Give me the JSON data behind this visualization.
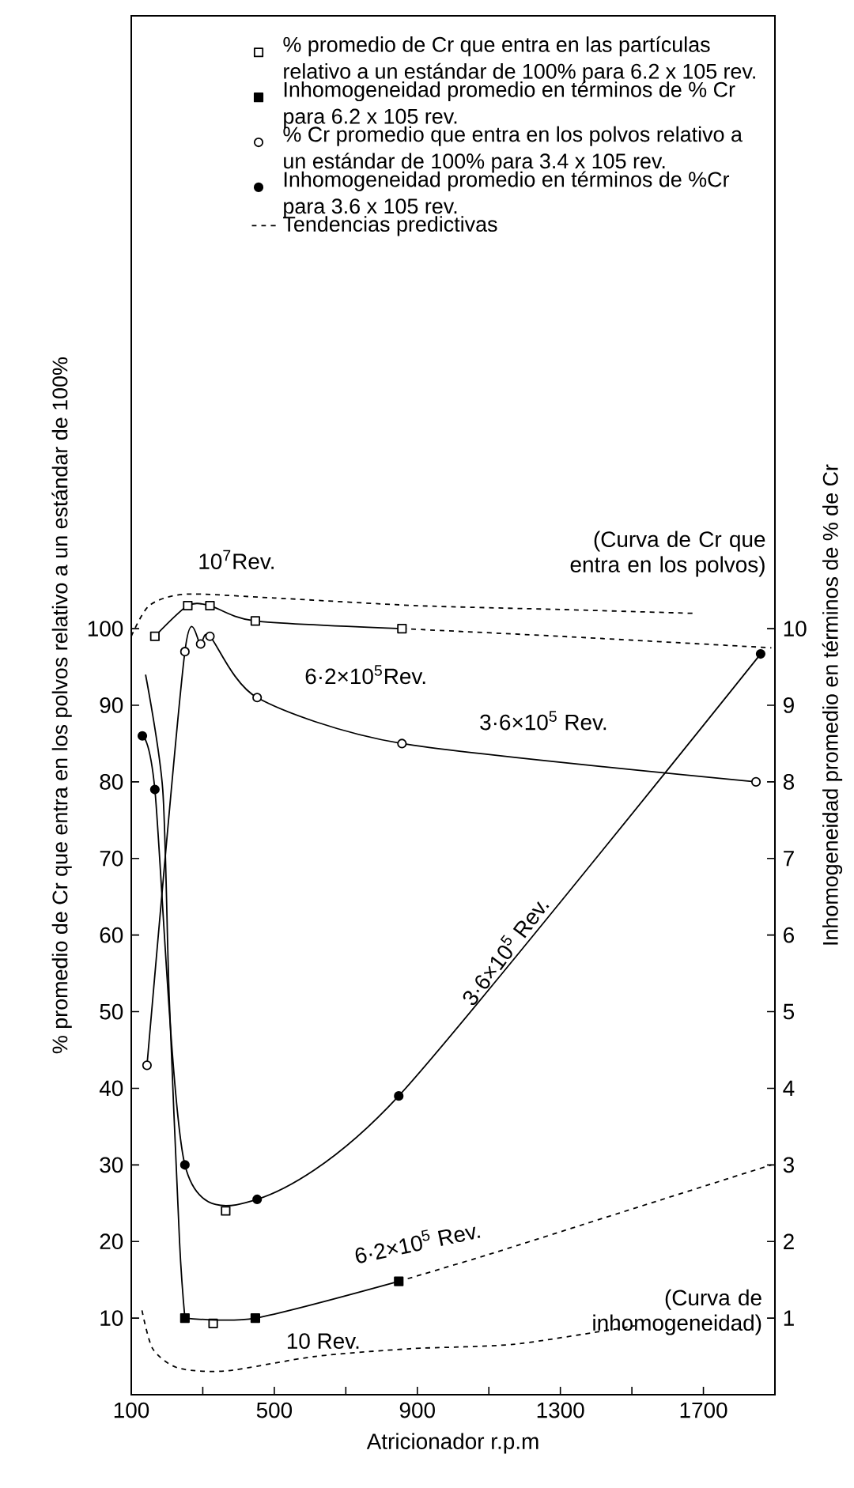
{
  "chart_data": {
    "type": "line",
    "xlabel": "Atricionador r.p.m",
    "ylabel": "% promedio de Cr que entra en los polvos relativo a un estándar de 100%",
    "y2label": "Inhomogeneidad promedio en términos de % de Cr",
    "xlim": [
      100,
      1900
    ],
    "ylim": [
      0,
      180
    ],
    "y2lim": [
      0,
      18
    ],
    "xticks": [
      100,
      {
        "value": 300,
        "label": null
      },
      500,
      {
        "value": 700,
        "label": null
      },
      900,
      {
        "value": 1100,
        "label": null
      },
      1300,
      {
        "value": 1500,
        "label": null
      },
      1700
    ],
    "yticks": [
      10,
      20,
      30,
      40,
      50,
      60,
      70,
      80,
      90,
      100
    ],
    "y2ticks": [
      1,
      2,
      3,
      4,
      5,
      6,
      7,
      8,
      9,
      10
    ],
    "legend": "top right",
    "series": [
      {
        "name": "% promedio de Cr que entra en las partículas relativo a un estándar de 100% para 6.2 x 105 rev.",
        "axis": "y",
        "color": "#000000",
        "marker": "square",
        "x": [
          166,
          258,
          320,
          447,
          857
        ],
        "values": [
          99,
          103,
          103,
          101,
          100
        ]
      },
      {
        "name": "Inhomogeneidad promedio en términos de % Cr para 6.2 x 105 rev.",
        "axis": "y2",
        "color": "#000000",
        "marker": "square",
        "x": [
          250,
          447,
          848
        ],
        "values": [
          1.0,
          1.0,
          1.48
        ]
      },
      {
        "name": "% Cr promedio que entra en los polvos relativo a un estándar de 100% para 3.4 x 105 rev.",
        "axis": "y",
        "color": "#000000",
        "marker": "circle",
        "x": [
          144,
          250,
          294,
          320,
          452,
          857,
          1847
        ],
        "values": [
          43,
          97,
          98,
          99,
          91,
          85,
          80
        ]
      },
      {
        "name": "Inhomogeneidad promedio en términos de %Cr para 3.6 x 105 rev.",
        "axis": "y2",
        "color": "#000000",
        "marker": "circle",
        "x": [
          131,
          166,
          250,
          452,
          848,
          1860
        ],
        "values": [
          8.6,
          7.9,
          3.0,
          2.55,
          3.9,
          9.67
        ]
      },
      {
        "name": "Tendencias predictivas",
        "axis": "y",
        "color": "#000000",
        "marker": "none",
        "line_style": "dashed",
        "x": [
          100,
          150,
          250,
          500,
          900,
          1300,
          1670
        ],
        "values": [
          99,
          103,
          104.5,
          104,
          103,
          102.5,
          102
        ]
      },
      {
        "axis": "y",
        "color": "#000000",
        "marker": "none",
        "line_style": "dashed",
        "x": [
          857,
          1300,
          1890
        ],
        "values": [
          100,
          99,
          97.5
        ]
      },
      {
        "axis": "y2",
        "color": "#000000",
        "marker": "none",
        "line_style": "dashed",
        "x": [
          130,
          160,
          230,
          364,
          615,
          879,
          1173,
          1508
        ],
        "values": [
          1.1,
          0.6,
          0.35,
          0.31,
          0.5,
          0.6,
          0.66,
          0.9
        ]
      },
      {
        "axis": "y2",
        "color": "#000000",
        "marker": "none",
        "line_style": "dashed",
        "x": [
          848,
          1099,
          1464,
          1890
        ],
        "values": [
          1.48,
          1.83,
          2.37,
          3.0
        ]
      },
      {
        "axis": "y2",
        "color": "#000000",
        "marker": "none",
        "line_style": "solid",
        "x": [
          140,
          188,
          206,
          235,
          250
        ],
        "values": [
          9.4,
          7.9,
          5.2,
          2.0,
          1.0
        ]
      },
      {
        "type": "scatter",
        "axis": "y",
        "color": "#000000",
        "marker": "square",
        "x": [
          329,
          364
        ],
        "values": [
          9.3,
          24
        ]
      }
    ],
    "annotations": [
      "10$^{7}$Rev.",
      "6·2×10$^{5}$Rev.",
      "3·6×10$^{5}$ Rev.",
      "3·6×10$^{5}$ Rev.",
      "6·2×10$^{5}$ Rev.",
      "10 Rev.",
      "(Curva de Cr que entra en los polvos)",
      "(Curva de inhomogeneidad)"
    ]
  }
}
